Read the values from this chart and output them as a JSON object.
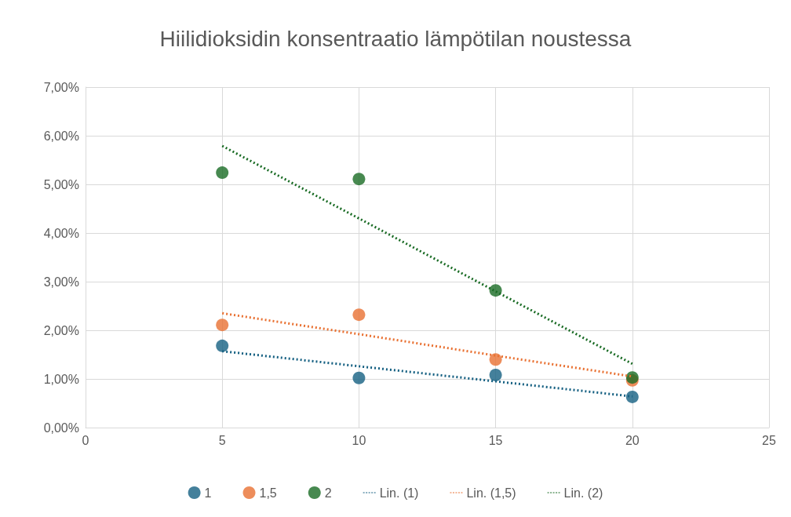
{
  "chart_data": {
    "type": "scatter",
    "title": "Hiilidioksidin konsentraatio lämpötilan noustessa",
    "x": [
      5,
      10,
      15,
      20
    ],
    "series": [
      {
        "name": "1",
        "color": "#156082",
        "values": [
          1.68,
          1.02,
          1.08,
          0.63
        ],
        "marker": "circle"
      },
      {
        "name": "1,5",
        "color": "#e97132",
        "values": [
          2.11,
          2.32,
          1.4,
          0.97
        ],
        "marker": "circle"
      },
      {
        "name": "2",
        "color": "#196b24",
        "values": [
          5.24,
          5.11,
          2.82,
          1.03
        ],
        "marker": "circle"
      },
      {
        "name": "Lin. (1)",
        "type": "line",
        "color": "#156082",
        "values": [
          1.57,
          1.26,
          0.95,
          0.64
        ],
        "marker": "none",
        "line_style": "dotted"
      },
      {
        "name": "Lin. (1,5)",
        "type": "line",
        "color": "#e97132",
        "values": [
          2.35,
          1.92,
          1.48,
          1.05
        ],
        "marker": "none",
        "line_style": "dotted"
      },
      {
        "name": "Lin. (2)",
        "type": "line",
        "color": "#196b24",
        "values": [
          5.79,
          4.3,
          2.8,
          1.31
        ],
        "marker": "none",
        "line_style": "dotted"
      }
    ],
    "xlim": [
      0,
      25
    ],
    "xticks": [
      0,
      5,
      10,
      15,
      20,
      25
    ],
    "ylim": [
      0,
      7
    ],
    "yticks": [
      {
        "value": 0,
        "label": "0,00%"
      },
      {
        "value": 1,
        "label": "1,00%"
      },
      {
        "value": 2,
        "label": "2,00%"
      },
      {
        "value": 3,
        "label": "3,00%"
      },
      {
        "value": 4,
        "label": "4,00%"
      },
      {
        "value": 5,
        "label": "5,00%"
      },
      {
        "value": 6,
        "label": "6,00%"
      },
      {
        "value": 7,
        "label": "7,00%"
      }
    ],
    "grid": true,
    "legend": "bottom"
  }
}
